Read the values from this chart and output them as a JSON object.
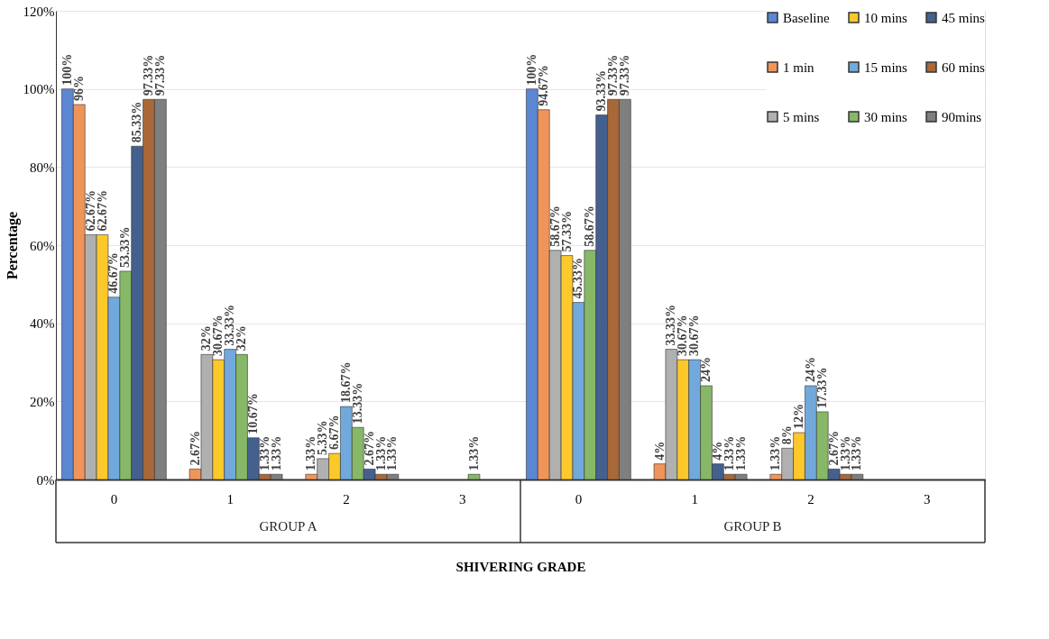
{
  "chart_data": {
    "type": "bar",
    "xlabel": "SHIVERING GRADE",
    "ylabel": "Percentage",
    "categories": [
      "0",
      "1",
      "2",
      "3",
      "0",
      "1",
      "2",
      "3"
    ],
    "annotations": [
      "GROUP A",
      "GROUP B"
    ],
    "ylim": [
      0,
      120
    ],
    "yticks": [
      {
        "value": 0,
        "label": "0%"
      },
      {
        "value": 20,
        "label": "20%"
      },
      {
        "value": 40,
        "label": "40%"
      },
      {
        "value": 60,
        "label": "60%"
      },
      {
        "value": 80,
        "label": "80%"
      },
      {
        "value": 100,
        "label": "100%"
      },
      {
        "value": 120,
        "label": "120%"
      }
    ],
    "grid": "y",
    "legend": "top right",
    "series": [
      {
        "name": "Baseline",
        "color": "#5b86d1",
        "values": [
          100,
          null,
          null,
          null,
          100,
          null,
          null,
          null
        ],
        "value_labels": [
          "100%",
          null,
          null,
          null,
          "100%",
          null,
          null,
          null
        ]
      },
      {
        "name": "1 min",
        "color": "#f0955a",
        "values": [
          96,
          2.67,
          1.33,
          null,
          94.67,
          4,
          1.33,
          null
        ],
        "value_labels": [
          "96%",
          "2.67%",
          "1.33%",
          null,
          "94.67%",
          "4%",
          "1.33%",
          null
        ]
      },
      {
        "name": "5 mins",
        "color": "#b0b0b0",
        "values": [
          62.67,
          32,
          5.33,
          null,
          58.67,
          33.33,
          8,
          null
        ],
        "value_labels": [
          "62.67%",
          "32%",
          "5.33%",
          null,
          "58.67%",
          "33.33%",
          "8%",
          null
        ]
      },
      {
        "name": "10 mins",
        "color": "#fcc82a",
        "values": [
          62.67,
          30.67,
          6.67,
          null,
          57.33,
          30.67,
          12,
          null
        ],
        "value_labels": [
          "62.67%",
          "30.67%",
          "6.67%",
          null,
          "57.33%",
          "30.67%",
          "12%",
          null
        ]
      },
      {
        "name": "15 mins",
        "color": "#72a9dc",
        "values": [
          46.67,
          33.33,
          18.67,
          null,
          45.33,
          30.67,
          24,
          null
        ],
        "value_labels": [
          "46.67%",
          "33.33%",
          "18.67%",
          null,
          "45.33%",
          "30.67%",
          "24%",
          null
        ]
      },
      {
        "name": "30 mins",
        "color": "#86b867",
        "values": [
          53.33,
          32,
          13.33,
          1.33,
          58.67,
          24,
          17.33,
          null
        ],
        "value_labels": [
          "53.33%",
          "32%",
          "13.33%",
          "1.33%",
          "58.67%",
          "24%",
          "17.33%",
          null
        ]
      },
      {
        "name": "45 mins",
        "color": "#44608e",
        "values": [
          85.33,
          10.67,
          2.67,
          null,
          93.33,
          4,
          2.67,
          null
        ],
        "value_labels": [
          "85.33%",
          "10.67%",
          "2.67%",
          null,
          "93.33%",
          "4%",
          "2.67%",
          null
        ]
      },
      {
        "name": "60 mins",
        "color": "#a86838",
        "values": [
          97.33,
          1.33,
          1.33,
          null,
          97.33,
          1.33,
          1.33,
          null
        ],
        "value_labels": [
          "97.33%",
          "1.33%",
          "1.33%",
          null,
          "97.33%",
          "1.33%",
          "1.33%",
          null
        ]
      },
      {
        "name": "90mins",
        "color": "#7f7f7f",
        "values": [
          97.33,
          1.33,
          1.33,
          null,
          97.33,
          1.33,
          1.33,
          null
        ],
        "value_labels": [
          "97.33%",
          "1.33%",
          "1.33%",
          null,
          "97.33%",
          "1.33%",
          "1.33%",
          null
        ]
      }
    ]
  }
}
